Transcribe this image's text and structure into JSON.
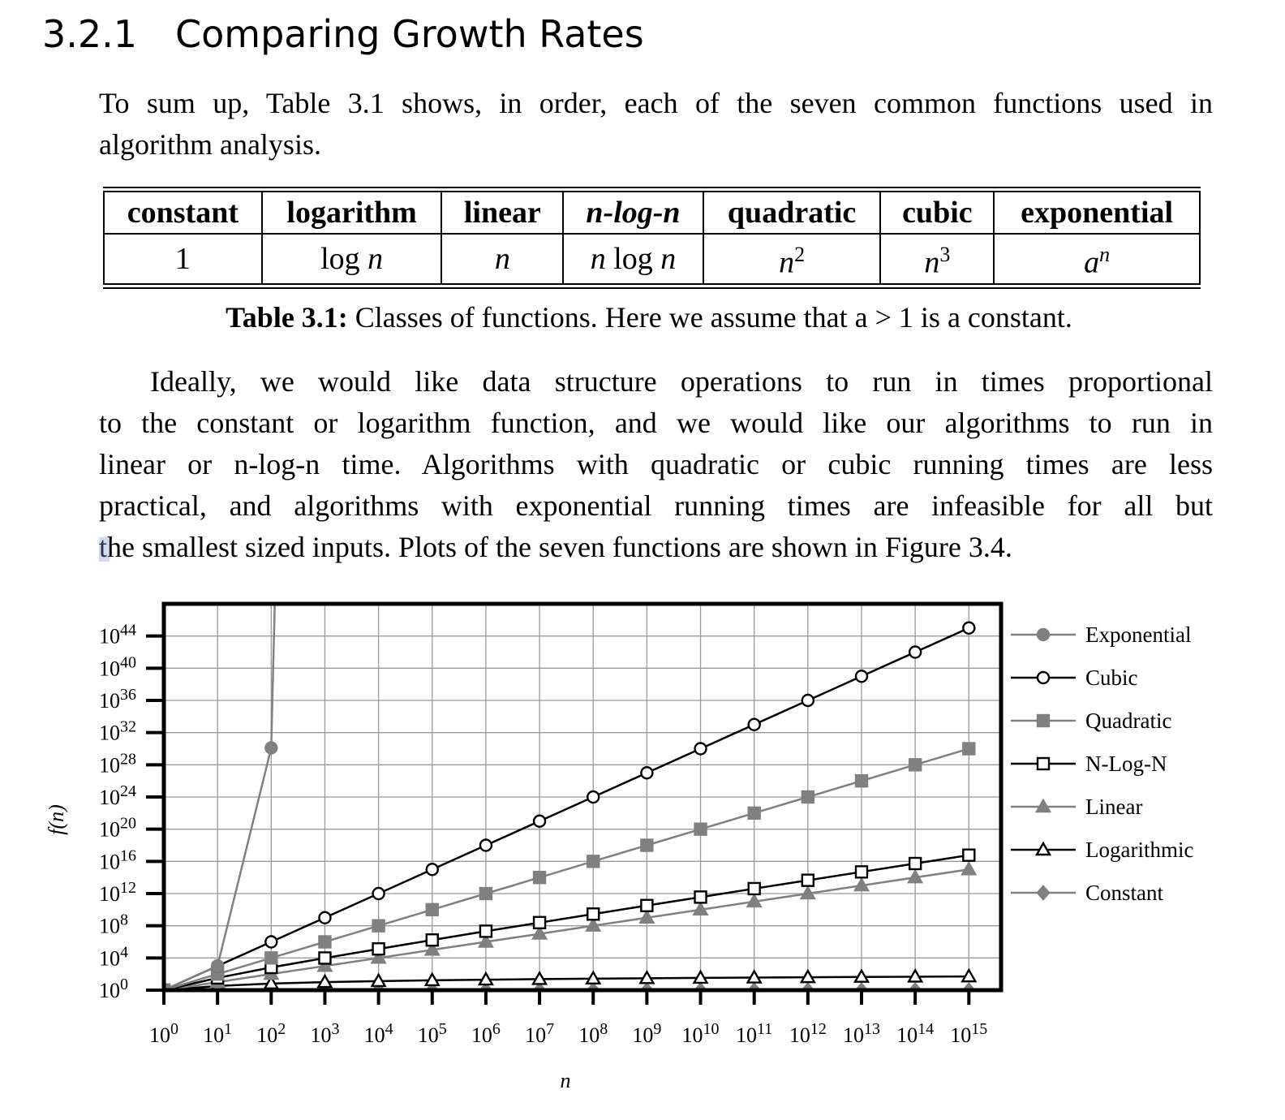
{
  "heading": {
    "number": "3.2.1",
    "title": "Comparing Growth Rates"
  },
  "intro": {
    "line1": "To sum up, Table 3.1 shows, in order, each of the seven common functions used in",
    "line2": "algorithm analysis."
  },
  "table": {
    "headers": [
      "constant",
      "logarithm",
      "linear",
      "n-log-n",
      "quadratic",
      "cubic",
      "exponential"
    ],
    "cells": [
      "1",
      "log n",
      "n",
      "n log n",
      "n2",
      "n3",
      "an"
    ],
    "caption_label": "Table 3.1:",
    "caption_text": "Classes of functions. Here we assume that a > 1 is a constant."
  },
  "body": {
    "lines": [
      "Ideally, we would like data structure operations to run in times proportional",
      "to the constant or logarithm function, and we would like our algorithms to run in",
      "linear or n-log-n time. Algorithms with quadratic or cubic running times are less",
      "practical, and algorithms with exponential running times are infeasible for all but",
      "the smallest sized inputs. Plots of the seven functions are shown in Figure 3.4."
    ]
  },
  "chart_data": {
    "type": "line",
    "xlabel": "n",
    "ylabel": "f(n)",
    "x_scale": "log10",
    "y_scale": "log10",
    "x_exponents": [
      0,
      1,
      2,
      3,
      4,
      5,
      6,
      7,
      8,
      9,
      10,
      11,
      12,
      13,
      14,
      15
    ],
    "x_tick_labels": [
      "10^0",
      "10^1",
      "10^2",
      "10^3",
      "10^4",
      "10^5",
      "10^6",
      "10^7",
      "10^8",
      "10^9",
      "10^10",
      "10^11",
      "10^12",
      "10^13",
      "10^14",
      "10^15"
    ],
    "y_tick_labels": [
      "10^0",
      "10^4",
      "10^8",
      "10^12",
      "10^16",
      "10^20",
      "10^24",
      "10^28",
      "10^32",
      "10^36",
      "10^40",
      "10^44"
    ],
    "xlim_exponent": [
      0,
      15.6
    ],
    "ylim_exponent": [
      0,
      48
    ],
    "grid": true,
    "legend_position": "right",
    "series": [
      {
        "name": "Exponential",
        "marker": "filled-circle",
        "color": "#808080",
        "log10_y": [
          0,
          3.01,
          30.1,
          301
        ]
      },
      {
        "name": "Cubic",
        "marker": "open-circle",
        "color": "#000000",
        "log10_y": [
          0,
          3,
          6,
          9,
          12,
          15,
          18,
          21,
          24,
          27,
          30,
          33,
          36,
          39,
          42,
          45
        ]
      },
      {
        "name": "Quadratic",
        "marker": "filled-square",
        "color": "#808080",
        "log10_y": [
          0,
          2,
          4,
          6,
          8,
          10,
          12,
          14,
          16,
          18,
          20,
          22,
          24,
          26,
          28,
          30
        ]
      },
      {
        "name": "N-Log-N",
        "marker": "open-square",
        "color": "#000000",
        "log10_y": [
          0,
          1.52,
          2.82,
          3.99,
          5.12,
          6.23,
          7.32,
          8.39,
          9.45,
          10.51,
          11.56,
          12.61,
          13.65,
          14.69,
          15.73,
          16.77
        ]
      },
      {
        "name": "Linear",
        "marker": "filled-triangle",
        "color": "#808080",
        "log10_y": [
          0,
          1,
          2,
          3,
          4,
          5,
          6,
          7,
          8,
          9,
          10,
          11,
          12,
          13,
          14,
          15
        ]
      },
      {
        "name": "Logarithmic",
        "marker": "open-triangle",
        "color": "#000000",
        "log10_y": [
          0,
          0.52,
          0.82,
          1.0,
          1.12,
          1.22,
          1.3,
          1.37,
          1.43,
          1.48,
          1.52,
          1.56,
          1.6,
          1.64,
          1.67,
          1.7
        ]
      },
      {
        "name": "Constant",
        "marker": "filled-diamond",
        "color": "#808080",
        "log10_y": [
          0,
          0,
          0,
          0,
          0,
          0,
          0,
          0,
          0,
          0,
          0,
          0,
          0,
          0,
          0,
          0
        ]
      }
    ]
  }
}
